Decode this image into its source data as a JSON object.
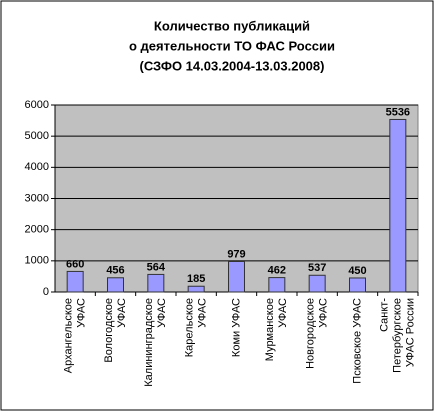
{
  "chart_data": {
    "type": "bar",
    "title": [
      "Количество публикаций",
      "о деятельности ТО ФАС России",
      "(СЗФО 14.03.2004-13.03.2008)"
    ],
    "categories": [
      [
        "Архангельское",
        "УФАС"
      ],
      [
        "Вологодское",
        "УФАС"
      ],
      [
        "Калининградское",
        "УФАС"
      ],
      [
        "Карельское",
        "УФАС"
      ],
      [
        "Коми УФАС"
      ],
      [
        "Мурманское",
        "УФАС"
      ],
      [
        "Новгородское",
        "УФАС"
      ],
      [
        "Псковское УФАС"
      ],
      [
        "Санкт-",
        "Петербургское",
        "УФАС России"
      ]
    ],
    "values": [
      660,
      456,
      564,
      185,
      979,
      462,
      537,
      450,
      5536
    ],
    "color": "#9999ff",
    "ylim": [
      0,
      6000
    ],
    "yticks": [
      0,
      1000,
      2000,
      3000,
      4000,
      5000,
      6000
    ],
    "grid": true
  }
}
